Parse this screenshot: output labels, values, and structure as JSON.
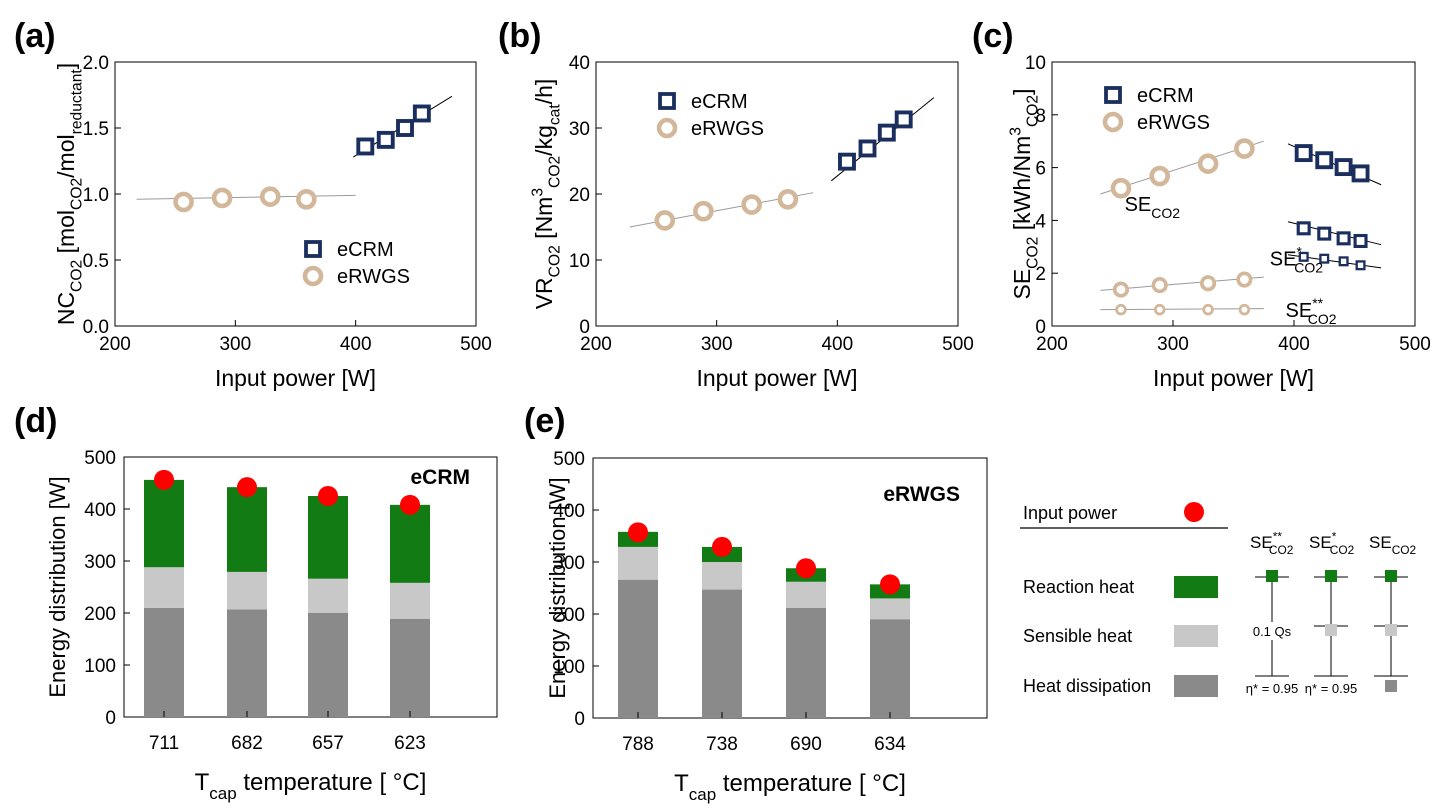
{
  "colors": {
    "ecrm": "#1b2f5e",
    "erwgs": "#d2b79a",
    "reaction": "#137b13",
    "sensible": "#c8c8c8",
    "dissipation": "#8a8a8a",
    "input_power": "#ff0000"
  },
  "chart_data": [
    {
      "panel": "(a)",
      "type": "scatter",
      "xlabel": "Input power [W]",
      "ylabel_parts": [
        "NC",
        "CO2",
        " [mol",
        "CO2",
        "/mol",
        "reductant",
        "]"
      ],
      "xlim": [
        200,
        500
      ],
      "ylim": [
        0.0,
        2.0
      ],
      "xticks": [
        200,
        300,
        400,
        500
      ],
      "yticks": [
        0.0,
        0.5,
        1.0,
        1.5,
        2.0
      ],
      "ytick_labels": [
        "0.0",
        "0.5",
        "1.0",
        "1.5",
        "2.0"
      ],
      "legend": [
        "eCRM",
        "eRWGS"
      ],
      "series": [
        {
          "name": "eCRM",
          "marker": "square",
          "x": [
            408,
            425,
            441,
            455
          ],
          "y": [
            1.36,
            1.41,
            1.5,
            1.61
          ],
          "fit": [
            [
              398,
              1.28
            ],
            [
              480,
              1.74
            ]
          ]
        },
        {
          "name": "eRWGS",
          "marker": "circle",
          "x": [
            257,
            289,
            329,
            359
          ],
          "y": [
            0.94,
            0.97,
            0.98,
            0.96
          ],
          "fit": [
            [
              218,
              0.96
            ],
            [
              400,
              0.99
            ]
          ]
        }
      ]
    },
    {
      "panel": "(b)",
      "type": "scatter",
      "xlabel": "Input power [W]",
      "ylabel_parts": [
        "VR",
        "CO2",
        " [Nm",
        "3",
        "CO2",
        "/kg",
        "cat",
        "/h]"
      ],
      "xlim": [
        200,
        500
      ],
      "ylim": [
        0,
        40
      ],
      "xticks": [
        200,
        300,
        400,
        500
      ],
      "yticks": [
        0,
        10,
        20,
        30,
        40
      ],
      "ytick_labels": [
        "0",
        "10",
        "20",
        "30",
        "40"
      ],
      "legend": [
        "eCRM",
        "eRWGS"
      ],
      "series": [
        {
          "name": "eCRM",
          "marker": "square",
          "x": [
            408,
            425,
            441,
            455
          ],
          "y": [
            24.9,
            26.9,
            29.3,
            31.3
          ],
          "fit": [
            [
              395,
              22.0
            ],
            [
              480,
              34.6
            ]
          ]
        },
        {
          "name": "eRWGS",
          "marker": "circle",
          "x": [
            257,
            289,
            329,
            359
          ],
          "y": [
            16.0,
            17.4,
            18.4,
            19.2
          ],
          "fit": [
            [
              228,
              15.0
            ],
            [
              380,
              20.2
            ]
          ]
        }
      ]
    },
    {
      "panel": "(c)",
      "type": "scatter",
      "xlabel": "Input power [W]",
      "ylabel_parts": [
        "SE",
        "CO2",
        " [kWh/Nm",
        "3",
        "CO2",
        "]"
      ],
      "xlim": [
        200,
        500
      ],
      "ylim": [
        0,
        10
      ],
      "xticks": [
        200,
        300,
        400,
        500
      ],
      "yticks": [
        0,
        2,
        4,
        6,
        8,
        10
      ],
      "ytick_labels": [
        "0",
        "2",
        "4",
        "6",
        "8",
        "10"
      ],
      "legend": [
        "eCRM",
        "eRWGS"
      ],
      "annotations": [
        {
          "label": "SE",
          "sub": "CO2",
          "sup": "",
          "x": 260,
          "y": 4.35
        },
        {
          "label": "SE",
          "sub": "CO2",
          "sup": "*",
          "x": 380,
          "y": 2.3
        },
        {
          "label": "SE",
          "sub": "CO2",
          "sup": "**",
          "x": 393,
          "y": 0.35
        }
      ],
      "series": [
        {
          "name": "eCRM",
          "marker": "square",
          "size": "large",
          "x": [
            408,
            425,
            441,
            455
          ],
          "y": [
            6.55,
            6.28,
            6.02,
            5.78
          ],
          "fit": [
            [
              395,
              6.9
            ],
            [
              472,
              5.35
            ]
          ]
        },
        {
          "name": "eCRM",
          "marker": "square",
          "size": "medium",
          "x": [
            408,
            425,
            441,
            455
          ],
          "y": [
            3.7,
            3.5,
            3.32,
            3.22
          ],
          "fit": [
            [
              395,
              3.95
            ],
            [
              472,
              3.08
            ]
          ]
        },
        {
          "name": "eCRM",
          "marker": "square",
          "size": "small",
          "x": [
            408,
            425,
            441,
            455
          ],
          "y": [
            2.62,
            2.55,
            2.45,
            2.3
          ],
          "fit": [
            [
              395,
              2.7
            ],
            [
              472,
              2.2
            ]
          ]
        },
        {
          "name": "eRWGS",
          "marker": "circle",
          "size": "large",
          "x": [
            257,
            289,
            329,
            359
          ],
          "y": [
            5.22,
            5.68,
            6.15,
            6.72
          ],
          "fit": [
            [
              240,
              5.0
            ],
            [
              375,
              7.0
            ]
          ]
        },
        {
          "name": "eRWGS",
          "marker": "circle",
          "size": "medium",
          "x": [
            257,
            289,
            329,
            359
          ],
          "y": [
            1.38,
            1.55,
            1.62,
            1.76
          ],
          "fit": [
            [
              240,
              1.35
            ],
            [
              375,
              1.85
            ]
          ]
        },
        {
          "name": "eRWGS",
          "marker": "circle",
          "size": "small",
          "x": [
            257,
            289,
            329,
            359
          ],
          "y": [
            0.62,
            0.62,
            0.62,
            0.62
          ],
          "fit": [
            [
              240,
              0.62
            ],
            [
              375,
              0.66
            ]
          ]
        }
      ]
    },
    {
      "panel": "(d)",
      "type": "bar",
      "stacked": true,
      "title": "eCRM",
      "xlabel_main": "T",
      "xlabel_sub": "cap",
      "xlabel_rest": " temperature [ °C]",
      "ylabel": "Energy distribution [W]",
      "ylim": [
        0,
        500
      ],
      "yticks": [
        0,
        100,
        200,
        300,
        400,
        500
      ],
      "categories": [
        "711",
        "682",
        "657",
        "623"
      ],
      "series": [
        {
          "name": "Heat dissipation",
          "values": [
            210,
            207,
            200,
            189
          ]
        },
        {
          "name": "Sensible heat",
          "values": [
            78,
            72,
            66,
            69
          ]
        },
        {
          "name": "Reaction heat",
          "values": [
            168,
            163,
            159,
            150
          ]
        }
      ],
      "input_power": [
        456,
        442,
        425,
        408
      ]
    },
    {
      "panel": "(e)",
      "type": "bar",
      "stacked": true,
      "title": "eRWGS",
      "xlabel_main": "T",
      "xlabel_sub": "cap",
      "xlabel_rest": " temperature [ °C]",
      "ylabel": "Energy distribution [W]",
      "ylim": [
        0,
        500
      ],
      "yticks": [
        0,
        100,
        200,
        300,
        400,
        500
      ],
      "categories": [
        "788",
        "738",
        "690",
        "634"
      ],
      "series": [
        {
          "name": "Heat dissipation",
          "values": [
            266,
            247,
            212,
            190
          ]
        },
        {
          "name": "Sensible heat",
          "values": [
            63,
            53,
            50,
            40
          ]
        },
        {
          "name": "Reaction heat",
          "values": [
            29,
            29,
            26,
            27
          ]
        }
      ],
      "input_power": [
        357,
        329,
        288,
        257
      ]
    }
  ],
  "legend_panel": {
    "input_power": "Input power",
    "items": [
      "Reaction heat",
      "Sensible heat",
      "Heat dissipation"
    ],
    "columns": [
      {
        "label": "SE",
        "sub": "CO2",
        "sup": "**",
        "note_mid": "0.1 Qs",
        "note_bottom": "η* = 0.95"
      },
      {
        "label": "SE",
        "sub": "CO2",
        "sup": "*",
        "note_mid": "",
        "note_bottom": "η* = 0.95"
      },
      {
        "label": "SE",
        "sub": "CO2",
        "sup": "",
        "note_mid": "",
        "note_bottom": ""
      }
    ]
  }
}
